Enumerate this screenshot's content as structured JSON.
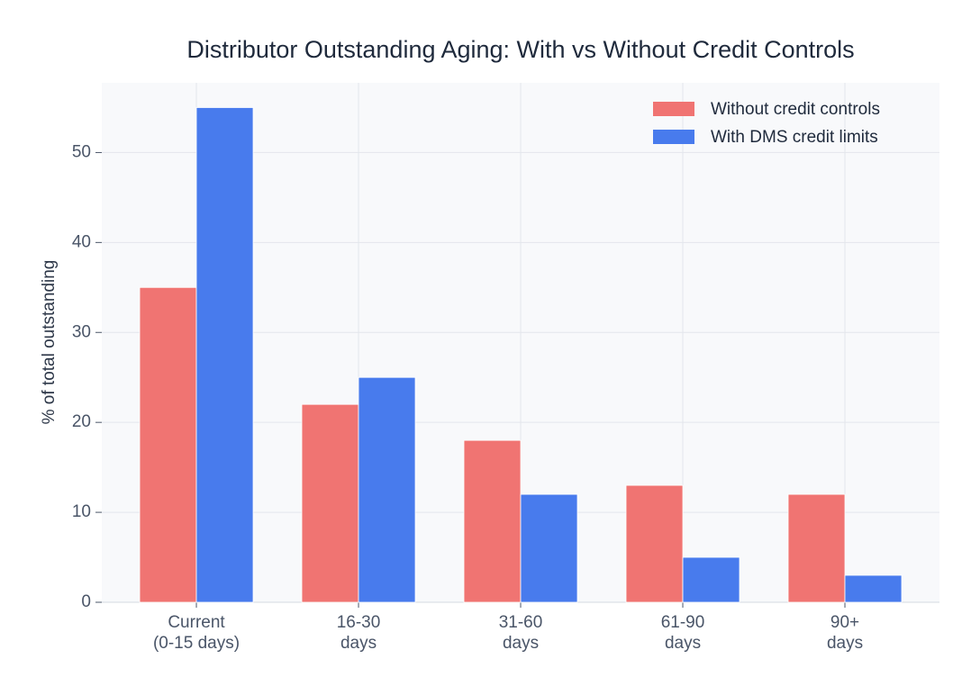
{
  "chart_data": {
    "type": "bar",
    "title": "Distributor Outstanding Aging: With vs Without Credit Controls",
    "y_label": "% of total outstanding",
    "categories": [
      "Current\n(0-15 days)",
      "16-30\ndays",
      "31-60\ndays",
      "61-90\ndays",
      "90+\ndays"
    ],
    "series": [
      {
        "name": "Without credit controls",
        "color": "#f07472",
        "values": [
          35,
          22,
          18,
          13,
          12
        ]
      },
      {
        "name": "With DMS credit limits",
        "color": "#487bed",
        "values": [
          55,
          25,
          12,
          5,
          3
        ]
      }
    ],
    "ylim": [
      0,
      57.75
    ],
    "yticks": [
      0,
      10,
      20,
      30,
      40,
      50
    ],
    "grid": true,
    "legend": "upper right"
  }
}
